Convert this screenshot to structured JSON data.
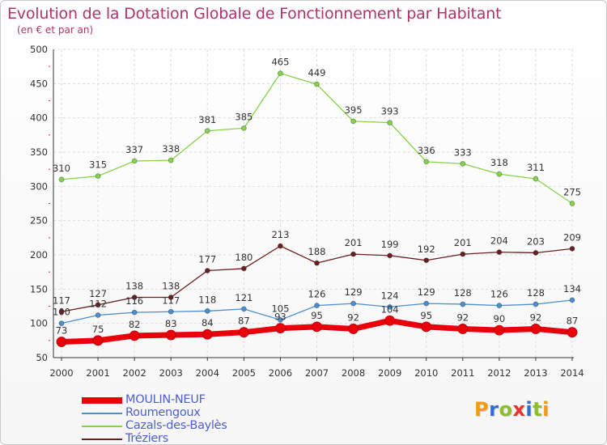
{
  "title": "Evolution de la Dotation Globale de Fonctionnement par Habitant",
  "subtitle": "(en € et par an)",
  "logo": {
    "text": "Proxiti",
    "colors": [
      "#f39a12",
      "#2f6fcf",
      "#8bbf2c",
      "#e8322c",
      "#2f6fcf",
      "#8bbf2c",
      "#f39a12"
    ]
  },
  "chart_data": {
    "type": "line",
    "x": [
      "2000",
      "2001",
      "2002",
      "2003",
      "2004",
      "2005",
      "2006",
      "2007",
      "2008",
      "2009",
      "2010",
      "2011",
      "2012",
      "2013",
      "2014"
    ],
    "ylim": [
      50,
      500
    ],
    "yticks": [
      "50",
      "100",
      "150",
      "200",
      "250",
      "300",
      "350",
      "400",
      "450",
      "500"
    ],
    "grid": true,
    "legend_position": "bottom-left",
    "series": [
      {
        "name": "MOULIN-NEUF",
        "color": "#e8000b",
        "values": [
          73,
          75,
          82,
          83,
          84,
          87,
          93,
          95,
          92,
          104,
          95,
          92,
          90,
          92,
          87
        ]
      },
      {
        "name": "Roumengoux",
        "color": "#4a8fcf",
        "values": [
          100,
          112,
          116,
          117,
          118,
          121,
          105,
          126,
          129,
          124,
          129,
          128,
          126,
          128,
          134
        ]
      },
      {
        "name": "Cazals-des-Baylès",
        "color": "#86d24a",
        "values": [
          310,
          315,
          337,
          338,
          381,
          385,
          465,
          449,
          395,
          393,
          336,
          333,
          318,
          311,
          275
        ]
      },
      {
        "name": "Tréziers",
        "color": "#6b1f1f",
        "values": [
          117,
          127,
          138,
          138,
          177,
          180,
          213,
          188,
          201,
          199,
          192,
          201,
          204,
          203,
          209
        ]
      }
    ]
  }
}
